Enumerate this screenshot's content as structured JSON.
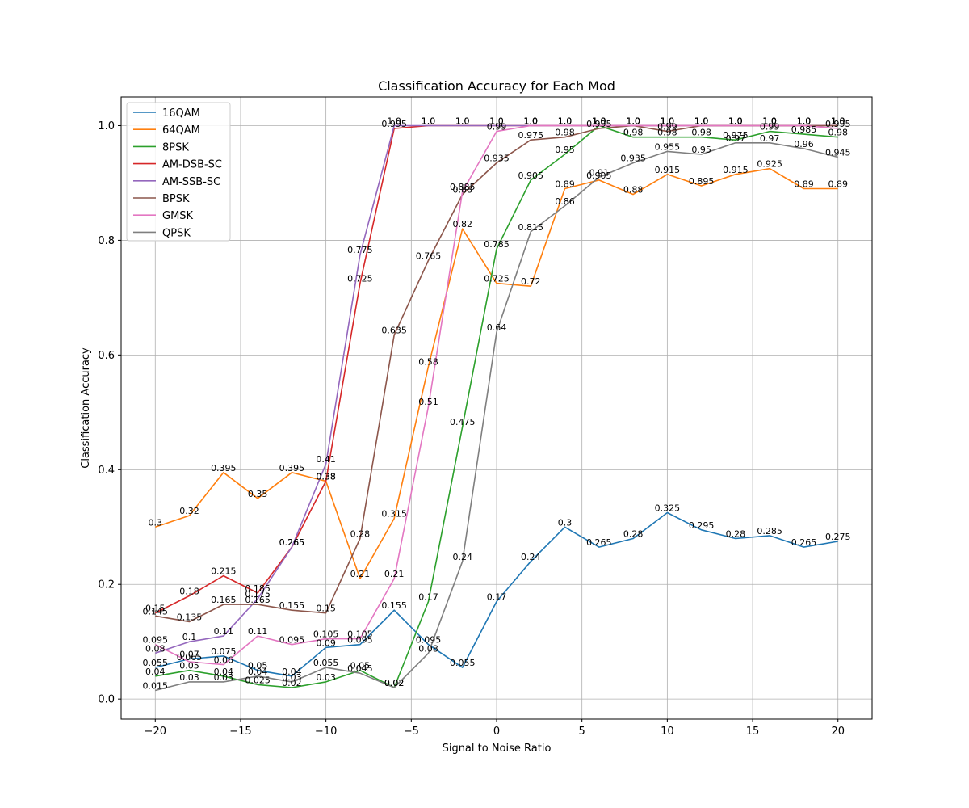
{
  "chart_data": {
    "type": "line",
    "title": "Classification Accuracy for Each Mod",
    "xlabel": "Signal to Noise Ratio",
    "ylabel": "Classification Accuracy",
    "xlim": [
      -22,
      22
    ],
    "ylim": [
      -0.035,
      1.05
    ],
    "x_ticks": [
      -20,
      -15,
      -10,
      -5,
      0,
      5,
      10,
      15,
      20
    ],
    "x_tick_labels": [
      "−20",
      "−15",
      "−10",
      "−5",
      "0",
      "5",
      "10",
      "15",
      "20"
    ],
    "y_ticks": [
      0.0,
      0.2,
      0.4,
      0.6,
      0.8,
      1.0
    ],
    "y_tick_labels": [
      "0.0",
      "0.2",
      "0.4",
      "0.6",
      "0.8",
      "1.0"
    ],
    "grid": true,
    "legend_position": "upper-left",
    "x": [
      -20,
      -18,
      -16,
      -14,
      -12,
      -10,
      -8,
      -6,
      -4,
      -2,
      0,
      2,
      4,
      6,
      8,
      10,
      12,
      14,
      16,
      18,
      20
    ],
    "series": [
      {
        "name": "16QAM",
        "color": "#1f77b4",
        "values": [
          0.055,
          0.07,
          0.075,
          0.05,
          0.04,
          0.09,
          0.095,
          0.155,
          0.095,
          0.055,
          0.17,
          0.24,
          0.3,
          0.265,
          0.28,
          0.325,
          0.295,
          0.28,
          0.285,
          0.265,
          0.275
        ],
        "labels": [
          "0.055",
          "0.07",
          "0.075",
          "0.05",
          "0.04",
          "0.09",
          "0.095",
          "0.155",
          "0.095",
          "0.055",
          "0.17",
          "0.24",
          "0.3",
          "0.265",
          "0.28",
          "0.325",
          "0.295",
          "0.28",
          "0.285",
          "0.265",
          "0.275"
        ]
      },
      {
        "name": "64QAM",
        "color": "#ff7f0e",
        "values": [
          0.3,
          0.32,
          0.395,
          0.35,
          0.395,
          0.38,
          0.21,
          0.315,
          0.58,
          0.82,
          0.725,
          0.72,
          0.89,
          0.905,
          0.88,
          0.915,
          0.895,
          0.915,
          0.925,
          0.89,
          0.89
        ],
        "labels": [
          "0.3",
          "0.32",
          "0.395",
          "0.35",
          "0.395",
          "0.38",
          "0.21",
          "0.315",
          "0.58",
          "0.82",
          "0.725",
          "0.72",
          "0.89",
          "0.905",
          "0.88",
          "0.915",
          "0.895",
          "0.915",
          "0.925",
          "0.89",
          "0.89"
        ]
      },
      {
        "name": "8PSK",
        "color": "#2ca02c",
        "values": [
          0.04,
          0.05,
          0.04,
          0.025,
          0.02,
          0.03,
          0.05,
          0.02,
          0.17,
          0.475,
          0.785,
          0.905,
          0.95,
          1.0,
          0.98,
          0.98,
          0.98,
          0.975,
          0.99,
          0.985,
          0.98
        ],
        "labels": [
          "0.04",
          "0.05",
          "0.04",
          "0.025",
          "0.02",
          "0.03",
          "0.05",
          "0.02",
          "0.17",
          "0.475",
          "0.785",
          "0.905",
          "0.95",
          "1.0",
          "0.98",
          "0.98",
          "0.98",
          "0.975",
          "0.99",
          "0.985",
          "0.98"
        ]
      },
      {
        "name": "AM-DSB-SC",
        "color": "#d62728",
        "values": [
          0.15,
          0.18,
          0.215,
          0.185,
          0.265,
          0.38,
          0.725,
          0.995,
          1.0,
          1.0,
          1.0,
          1.0,
          1.0,
          1.0,
          1.0,
          1.0,
          1.0,
          1.0,
          1.0,
          1.0,
          1.0
        ],
        "labels": [
          "0.15",
          "0.18",
          "0.215",
          "0.185",
          "0.265",
          "0.38",
          "0.725",
          "0.995",
          "1.0",
          "1.0",
          "1.0",
          "1.0",
          "1.0",
          "1.0",
          "1.0",
          "1.0",
          "1.0",
          "1.0",
          "1.0",
          "1.0",
          "1.0"
        ]
      },
      {
        "name": "AM-SSB-SC",
        "color": "#9467bd",
        "values": [
          0.08,
          0.1,
          0.11,
          0.175,
          0.265,
          0.41,
          0.775,
          1.0,
          1.0,
          1.0,
          1.0,
          1.0,
          1.0,
          1.0,
          1.0,
          1.0,
          1.0,
          1.0,
          1.0,
          1.0,
          1.0
        ],
        "labels": [
          "0.08",
          "0.1",
          "0.11",
          "0.175",
          "0.265",
          "0.41",
          "0.775",
          "1.0",
          "1.0",
          "1.0",
          "1.0",
          "1.0",
          "1.0",
          "1.0",
          "1.0",
          "1.0",
          "1.0",
          "1.0",
          "1.0",
          "1.0",
          "1.0"
        ]
      },
      {
        "name": "BPSK",
        "color": "#8c564b",
        "values": [
          0.145,
          0.135,
          0.165,
          0.165,
          0.155,
          0.15,
          0.28,
          0.635,
          0.765,
          0.88,
          0.935,
          0.975,
          0.98,
          0.995,
          1.0,
          0.99,
          1.0,
          1.0,
          1.0,
          1.0,
          1.0
        ],
        "labels": [
          "0.145",
          "0.135",
          "0.165",
          "0.165",
          "0.155",
          "0.15",
          "0.28",
          "0.635",
          "0.765",
          "0.88",
          "0.935",
          "0.975",
          "0.98",
          "0.995",
          "1.0",
          "0.99",
          "1.0",
          "1.0",
          "1.0",
          "1.0",
          "1.0"
        ]
      },
      {
        "name": "GMSK",
        "color": "#e377c2",
        "values": [
          0.095,
          0.065,
          0.06,
          0.11,
          0.095,
          0.105,
          0.105,
          0.21,
          0.51,
          0.885,
          0.99,
          1.0,
          1.0,
          1.0,
          1.0,
          1.0,
          1.0,
          1.0,
          1.0,
          1.0,
          0.995
        ],
        "labels": [
          "0.095",
          "0.065",
          "0.06",
          "0.11",
          "0.095",
          "0.105",
          "0.105",
          "0.21",
          "0.51",
          "0.885",
          "0.99",
          "1.0",
          "1.0",
          "1.0",
          "1.0",
          "1.0",
          "1.0",
          "1.0",
          "1.0",
          "1.0",
          "0.995"
        ]
      },
      {
        "name": "QPSK",
        "color": "#7f7f7f",
        "values": [
          0.015,
          0.03,
          0.03,
          0.04,
          0.03,
          0.055,
          0.045,
          0.02,
          0.08,
          0.24,
          0.64,
          0.815,
          0.86,
          0.91,
          0.935,
          0.955,
          0.95,
          0.97,
          0.97,
          0.96,
          0.945
        ],
        "labels": [
          "0.015",
          "0.03",
          "0.03",
          "0.04",
          "0.03",
          "0.055",
          "0.045",
          "0.02",
          "0.08",
          "0.24",
          "0.64",
          "0.815",
          "0.86",
          "0.91",
          "0.935",
          "0.955",
          "0.95",
          "0.97",
          "0.97",
          "0.96",
          "0.945"
        ]
      }
    ]
  }
}
